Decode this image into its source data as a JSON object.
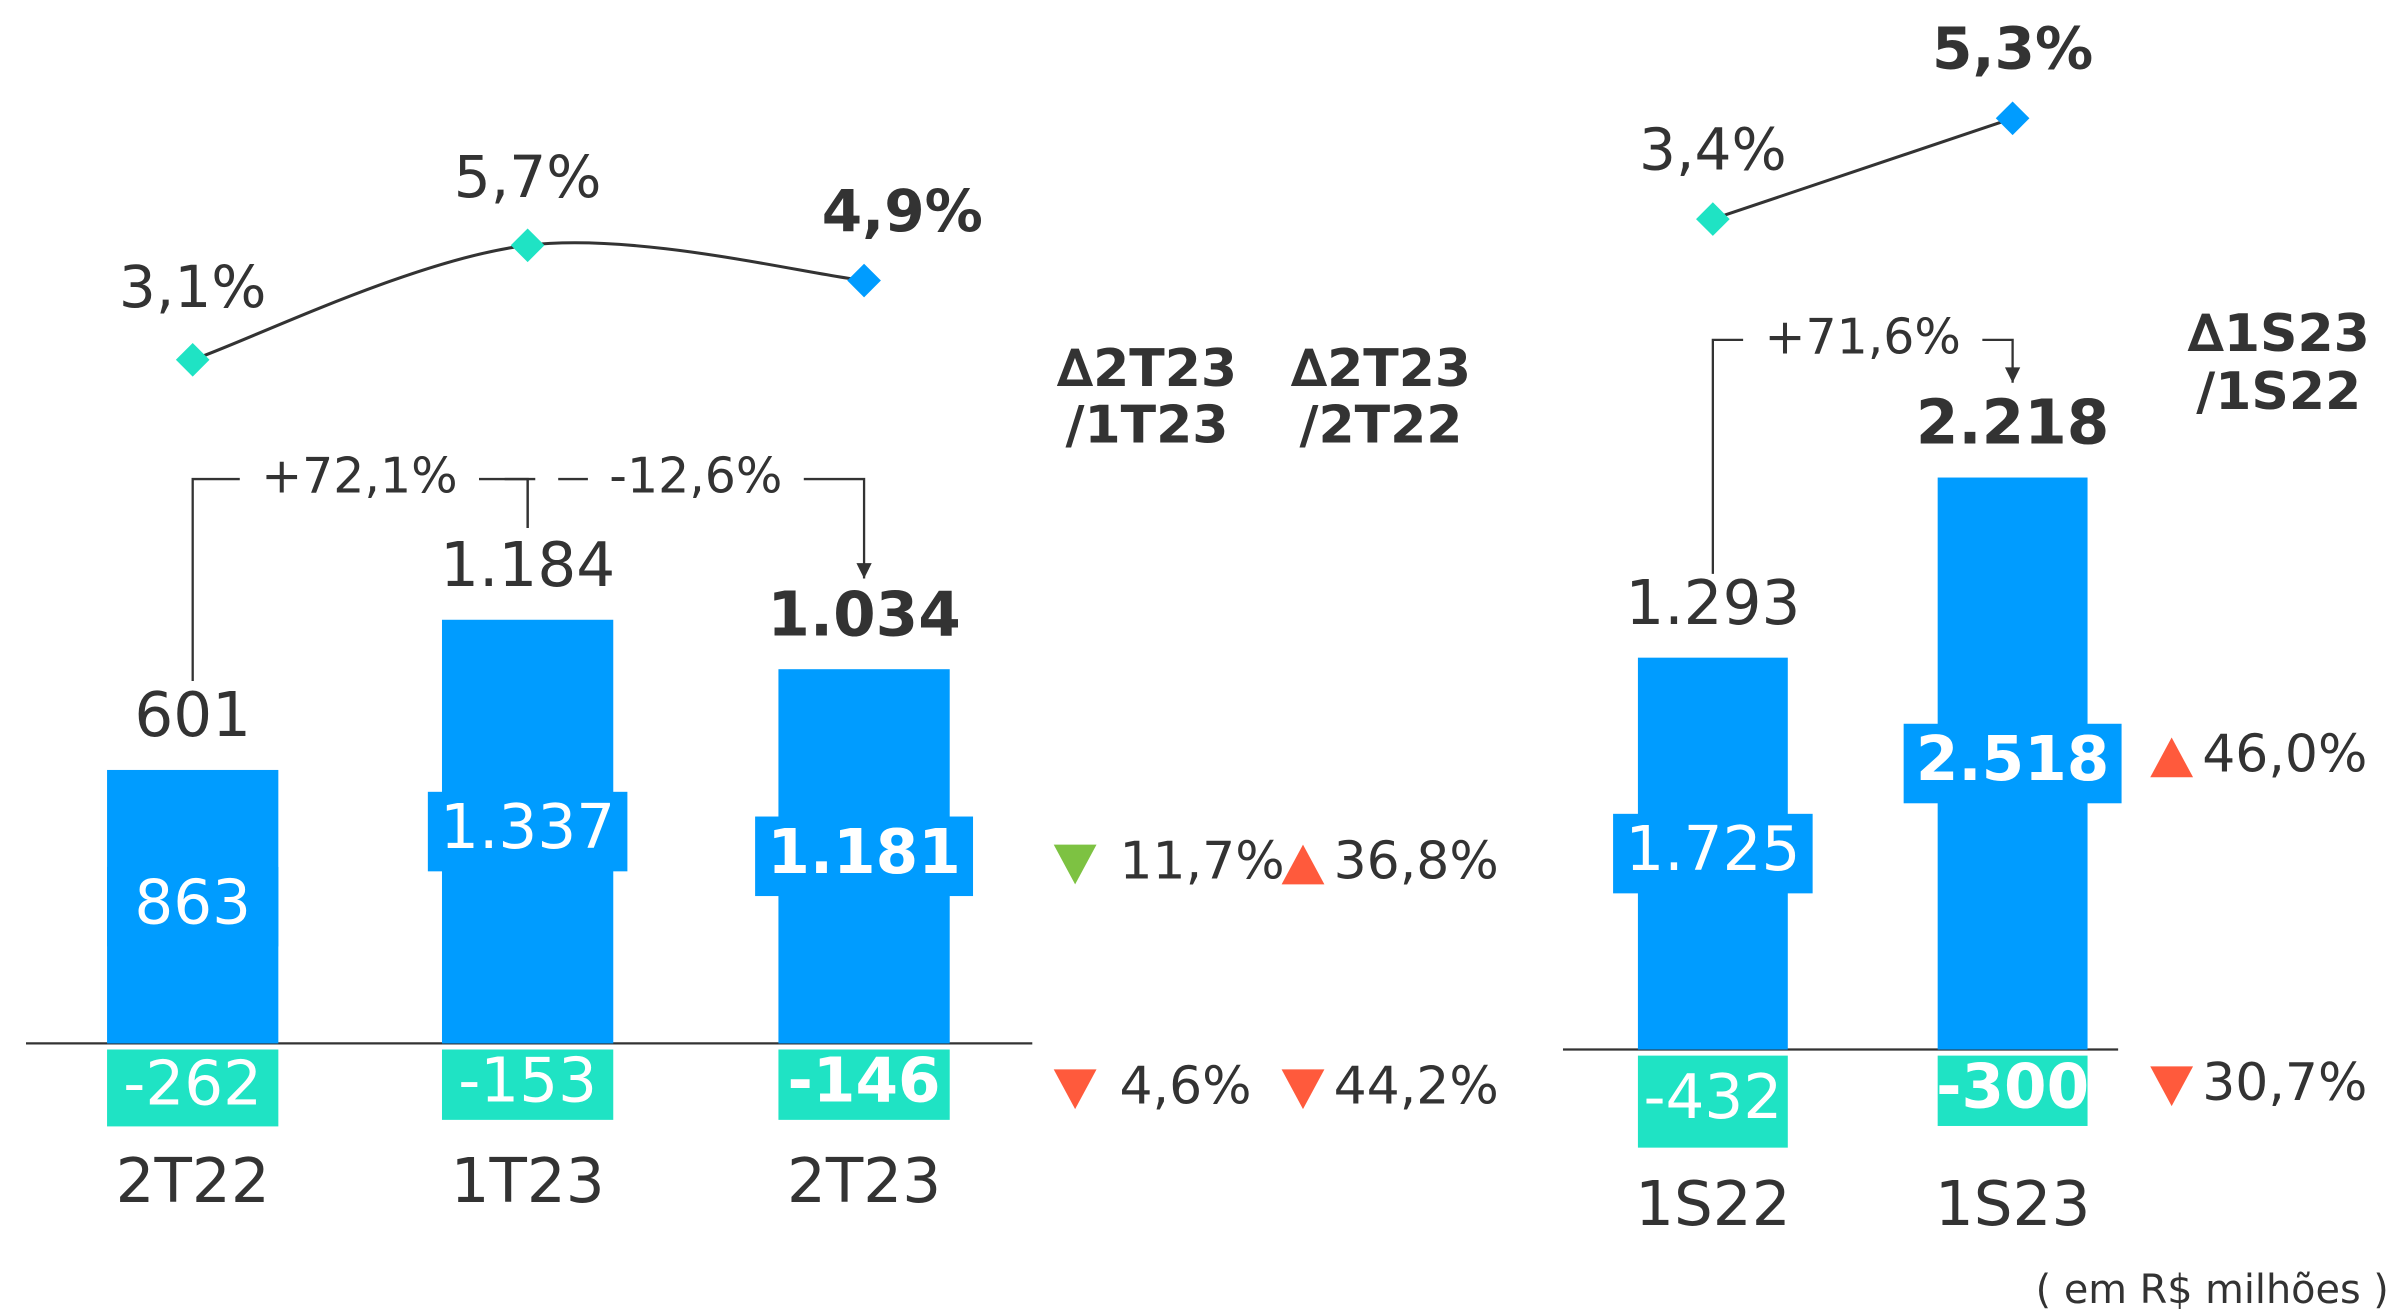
{
  "panels": [
    {
      "categories": [
        "2T22",
        "1T23",
        "2T23"
      ],
      "positive": {
        "color": "#009cff",
        "values": [
          863,
          1337,
          1181
        ],
        "value_labels": [
          "863",
          "1.337",
          "1.181"
        ]
      },
      "negative": {
        "color": "#1fe3c4",
        "values": [
          -262,
          -153,
          -146
        ],
        "value_labels": [
          "-262",
          "-153",
          "-146"
        ]
      },
      "totals": {
        "values": [
          601,
          1184,
          1034
        ],
        "value_labels": [
          "601",
          "1.184",
          "1.034"
        ]
      },
      "margin": {
        "values": [
          3.1,
          5.7,
          4.9
        ],
        "value_labels": [
          "3,1%",
          "5,7%",
          "4,9%"
        ],
        "marker_colors": [
          "#1fe3c4",
          "#1fe3c4",
          "#009cff"
        ]
      },
      "changes": [
        "+72,1%",
        "-12,6%"
      ],
      "variations": {
        "headers": [
          [
            "∆2T23",
            "/1T23"
          ],
          [
            "∆2T23",
            "/2T22"
          ]
        ],
        "rows": [
          [
            {
              "label": "11,7%",
              "direction": "down",
              "color": "#7dc242"
            },
            {
              "label": "36,8%",
              "direction": "up",
              "color": "#ff5a3c"
            }
          ],
          [
            {
              "label": "4,6%",
              "direction": "down",
              "color": "#ff5a3c"
            },
            {
              "label": "44,2%",
              "direction": "down",
              "color": "#ff5a3c"
            }
          ]
        ]
      }
    },
    {
      "categories": [
        "1S22",
        "1S23"
      ],
      "positive": {
        "color": "#009cff",
        "values": [
          1725,
          2518
        ],
        "value_labels": [
          "1.725",
          "2.518"
        ]
      },
      "negative": {
        "color": "#1fe3c4",
        "values": [
          -432,
          -300
        ],
        "value_labels": [
          "-432",
          "-300"
        ]
      },
      "totals": {
        "values": [
          1293,
          2218
        ],
        "value_labels": [
          "1.293",
          "2.218"
        ]
      },
      "margin": {
        "values": [
          3.4,
          5.3
        ],
        "value_labels": [
          "3,4%",
          "5,3%"
        ],
        "marker_colors": [
          "#1fe3c4",
          "#009cff"
        ]
      },
      "changes": [
        "+71,6%"
      ],
      "variations": {
        "headers": [
          [
            "∆1S23",
            "/1S22"
          ]
        ],
        "rows": [
          [
            {
              "label": "46,0%",
              "direction": "up",
              "color": "#ff5a3c"
            }
          ],
          [
            {
              "label": "30,7%",
              "direction": "down",
              "color": "#ff5a3c"
            }
          ]
        ]
      }
    }
  ],
  "footnote": "( em R$ milhões )"
}
